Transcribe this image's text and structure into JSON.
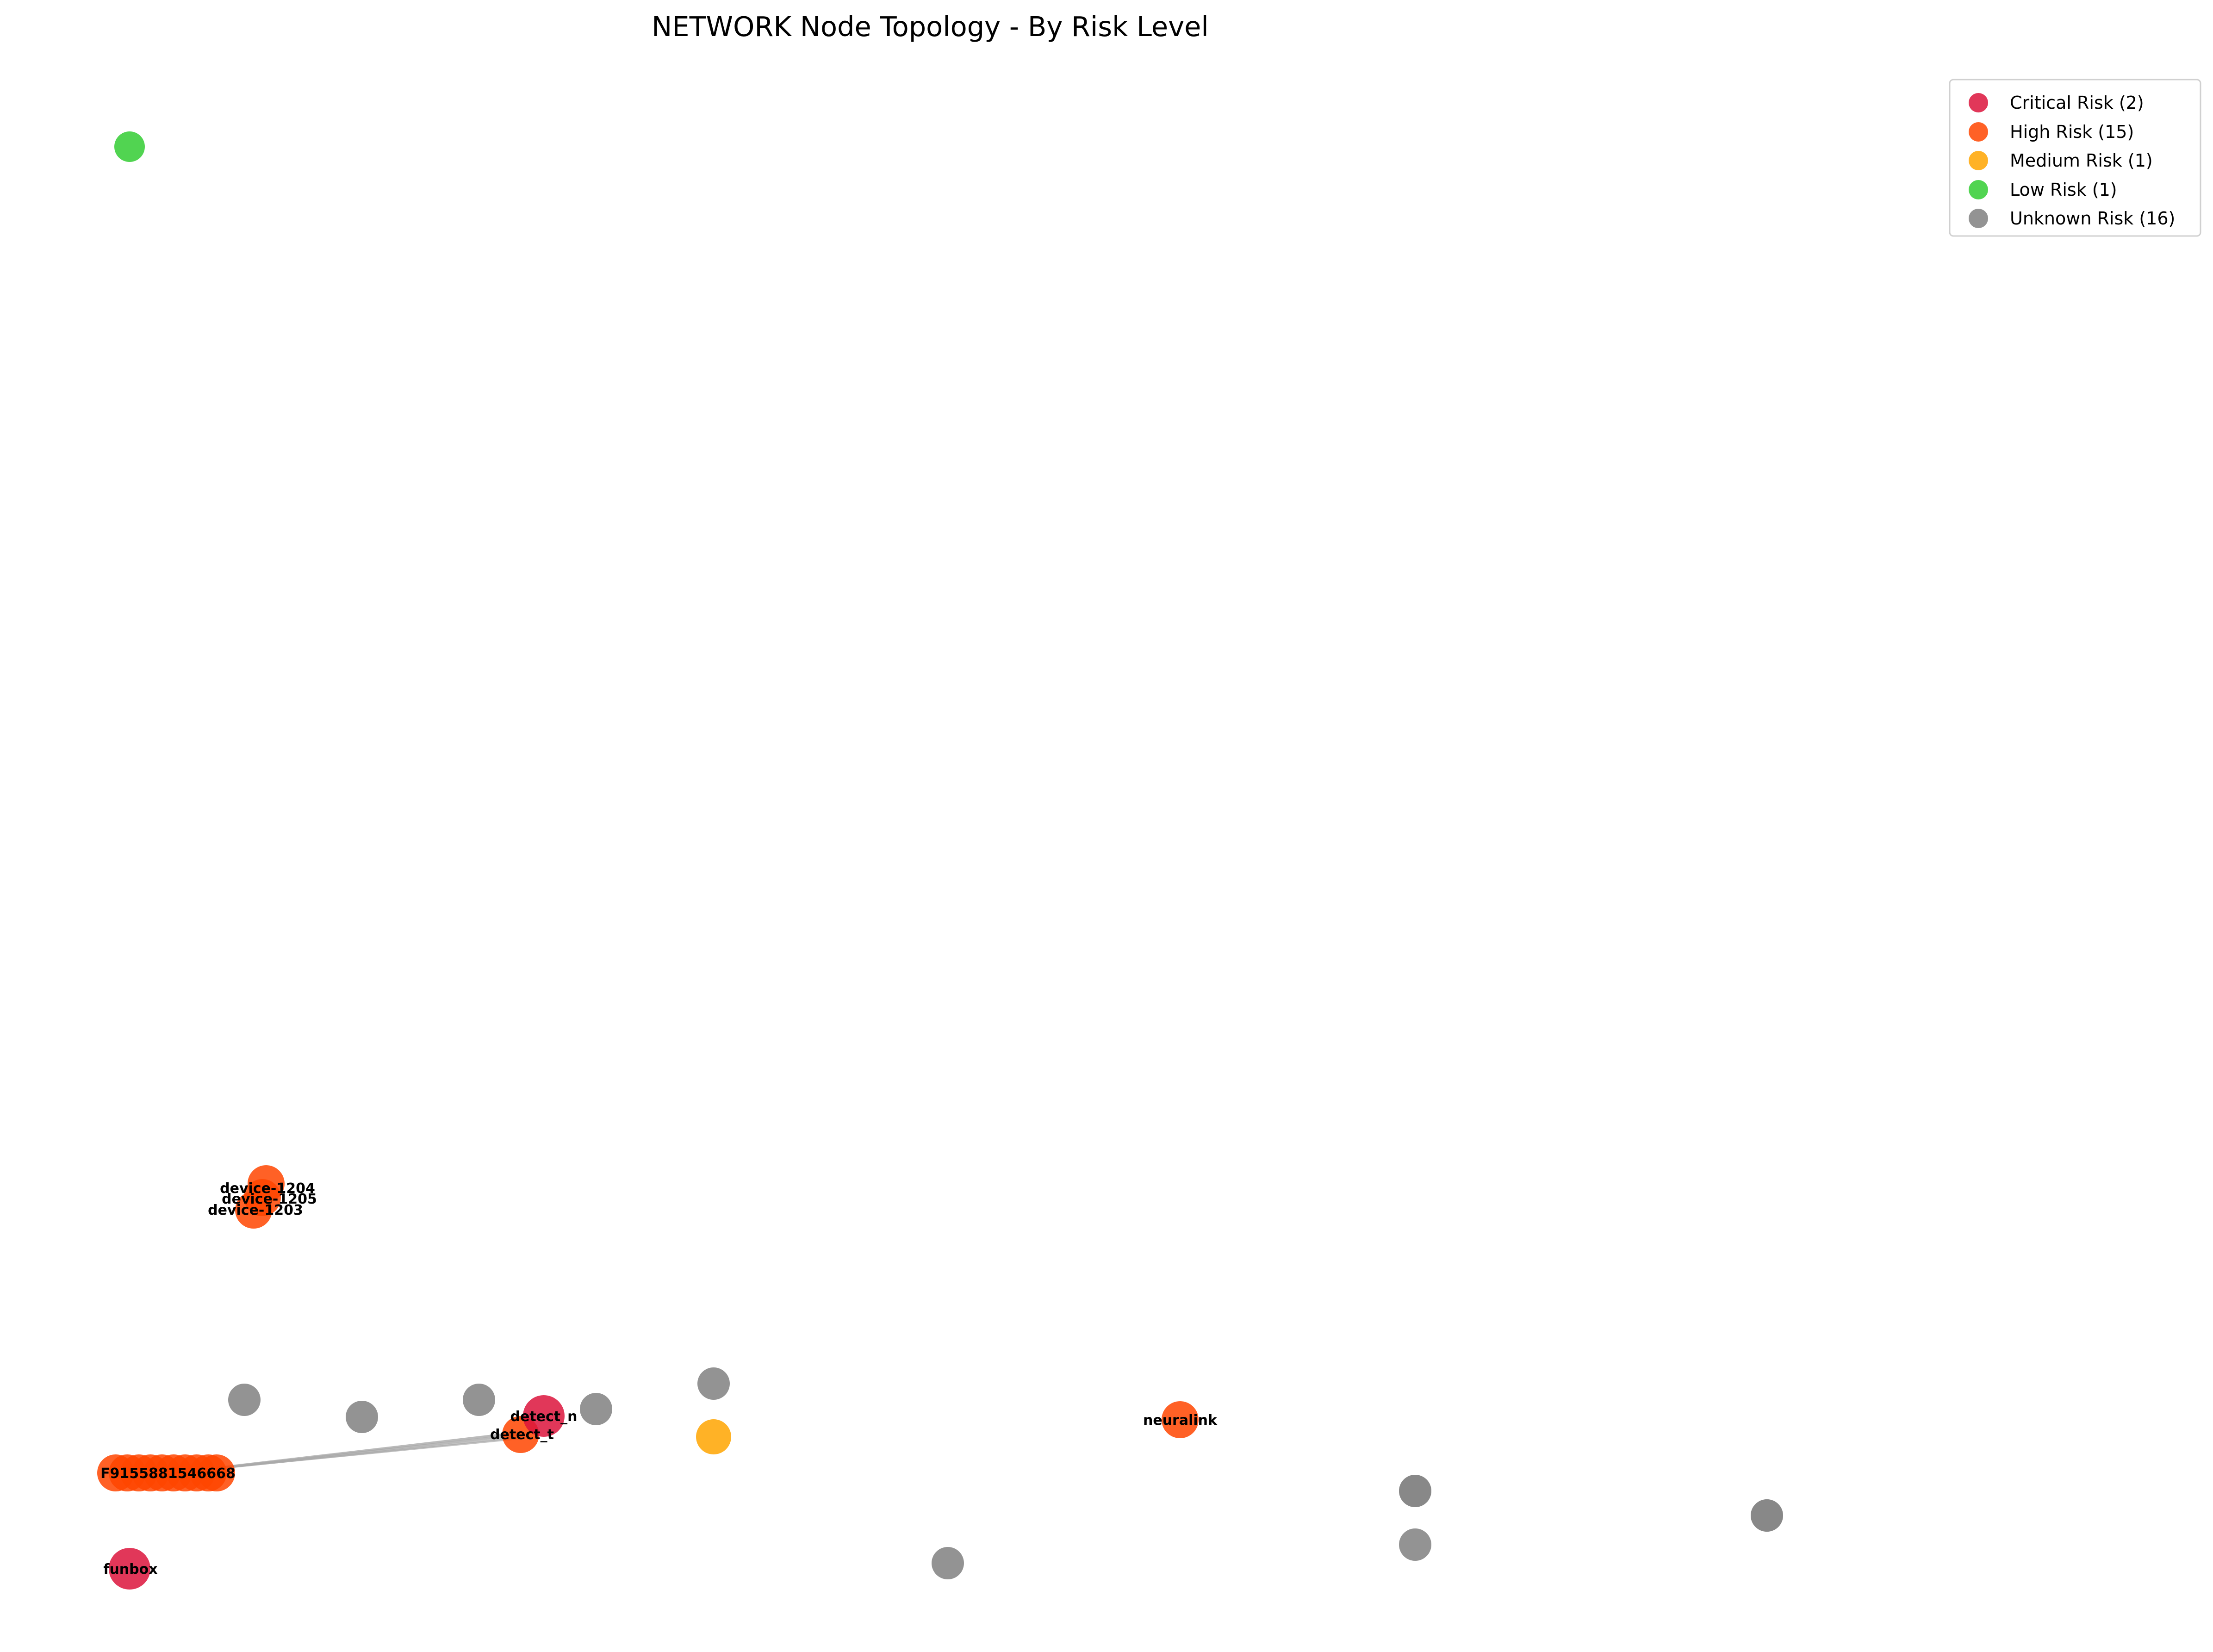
{
  "title": "NETWORK Node Topology - By Risk Level",
  "colors": {
    "critical": "#dc143c",
    "high": "#ff4500",
    "medium": "#ffa500",
    "low": "#32cd32",
    "unknown": "#808080",
    "edge": "#a9a9a9",
    "legend_border": "#cccccc"
  },
  "legend": [
    {
      "key": "critical",
      "label": "Critical Risk (2)"
    },
    {
      "key": "high",
      "label": "High Risk (15)"
    },
    {
      "key": "medium",
      "label": "Medium Risk (1)"
    },
    {
      "key": "low",
      "label": "Low Risk (1)"
    },
    {
      "key": "unknown",
      "label": "Unknown Risk (16)"
    }
  ],
  "node_labels": {
    "device_1204": "device-1204",
    "device_1205": "device-1205",
    "device_1203": "device-1203",
    "detect_n": "detect_n",
    "detect_t": "detect_t",
    "neuralink": "neuralink",
    "cluster": "F9155881546668",
    "funbox": "funbox"
  }
}
